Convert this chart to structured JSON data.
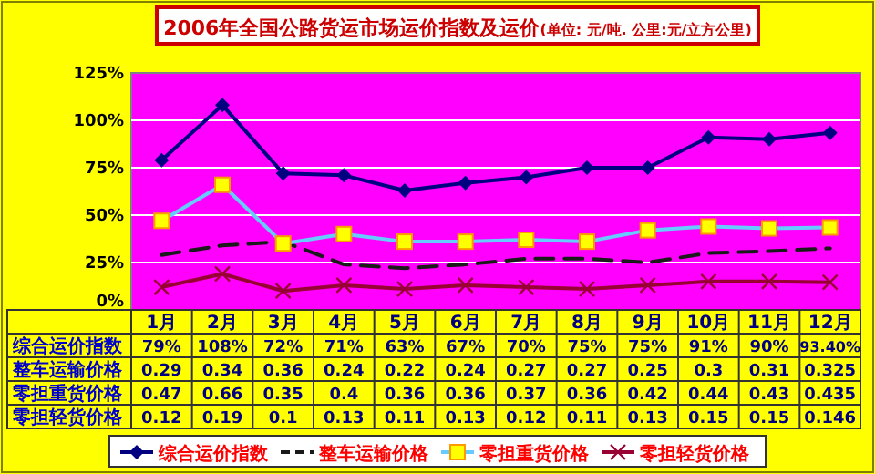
{
  "chart_data": {
    "type": "line",
    "title": "2006年全国公路货运市场运价指数及运价",
    "subtitle": "(单位: 元/吨. 公里:元/立方公里)",
    "categories": [
      "1月",
      "2月",
      "3月",
      "4月",
      "5月",
      "6月",
      "7月",
      "8月",
      "9月",
      "10月",
      "11月",
      "12月"
    ],
    "ylim": [
      0,
      1.25
    ],
    "yticks": [
      {
        "value": 0,
        "label": "0%"
      },
      {
        "value": 0.25,
        "label": "25%"
      },
      {
        "value": 0.5,
        "label": "50%"
      },
      {
        "value": 0.75,
        "label": "75%"
      },
      {
        "value": 1,
        "label": "100%"
      },
      {
        "value": 1.25,
        "label": "125%"
      }
    ],
    "grid": "y",
    "legend": "bottom",
    "series": [
      {
        "name": "综合运价指数",
        "color": "#000080",
        "marker": "diamond",
        "line_style": "solid",
        "values": [
          0.79,
          1.08,
          0.72,
          0.71,
          0.63,
          0.67,
          0.7,
          0.75,
          0.75,
          0.91,
          0.9,
          0.934
        ],
        "value_labels": [
          "79%",
          "108%",
          "72%",
          "71%",
          "63%",
          "67%",
          "70%",
          "75%",
          "75%",
          "91%",
          "90%",
          "93.40%"
        ]
      },
      {
        "name": "整车运输价格",
        "color": "#1a1a1a",
        "marker": "none",
        "line_style": "dashed",
        "values": [
          0.29,
          0.34,
          0.36,
          0.24,
          0.22,
          0.24,
          0.27,
          0.27,
          0.25,
          0.3,
          0.31,
          0.325
        ],
        "value_labels": [
          "0.29",
          "0.34",
          "0.36",
          "0.24",
          "0.22",
          "0.24",
          "0.27",
          "0.27",
          "0.25",
          "0.3",
          "0.31",
          "0.325"
        ]
      },
      {
        "name": "零担重货价格",
        "color": "#66ccff",
        "marker": "square",
        "line_style": "solid",
        "values": [
          0.47,
          0.66,
          0.35,
          0.4,
          0.36,
          0.36,
          0.37,
          0.36,
          0.42,
          0.44,
          0.43,
          0.435
        ],
        "value_labels": [
          "0.47",
          "0.66",
          "0.35",
          "0.4",
          "0.36",
          "0.36",
          "0.37",
          "0.36",
          "0.42",
          "0.44",
          "0.43",
          "0.435"
        ]
      },
      {
        "name": "零担轻货价格",
        "color": "#990033",
        "marker": "cross",
        "line_style": "solid",
        "values": [
          0.12,
          0.19,
          0.1,
          0.13,
          0.11,
          0.13,
          0.12,
          0.11,
          0.13,
          0.15,
          0.15,
          0.146
        ],
        "value_labels": [
          "0.12",
          "0.19",
          "0.1",
          "0.13",
          "0.11",
          "0.13",
          "0.12",
          "0.11",
          "0.13",
          "0.15",
          "0.15",
          "0.146"
        ]
      }
    ]
  }
}
